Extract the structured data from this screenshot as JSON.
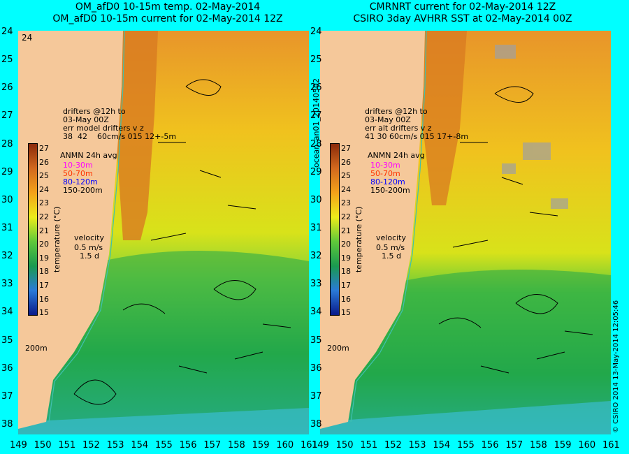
{
  "left_panel": {
    "title_line1": "OM_afD0 10-15m temp. 02-May-2014",
    "title_line2": "OM_afD0 10-15m current for 02-May-2014 12Z",
    "drifters_text": "drifters @12h to\n03-May 00Z\nerr model drifters v z\n38  42    60cm/s 015 12+-5m",
    "legend_title": "ANMN 24h avg",
    "legend_items": [
      "10-30m",
      "50-70m",
      "80-120m",
      "150-200m"
    ],
    "velocity_label": "velocity",
    "velocity_scale": "0.5 m/s",
    "velocity_time": "1.5 d",
    "colorbar_title": "temperature (°C)",
    "depth_label": "200m"
  },
  "right_panel": {
    "title_line1": "CMRNRT current for 02-May-2014 12Z",
    "title_line2": "CSIRO 3day AVHRR SST at 02-May-2014 00Z",
    "drifters_text": "drifters @12h to\n03-May 00Z\nerr alt drifters v z\n41 30 60cm/s 015 17+-8m",
    "legend_title": "ANMN 24h avg",
    "legend_items": [
      "10-30m",
      "50-70m",
      "80-120m",
      "150-200m"
    ],
    "velocity_label": "velocity",
    "velocity_scale": "0.5 m/s",
    "velocity_time": "1.5 d",
    "colorbar_title": "temperature (°C)",
    "depth_label": "200m"
  },
  "colorbar_ticks": [
    "27",
    "26",
    "25",
    "24",
    "23",
    "22",
    "21",
    "20",
    "19",
    "18",
    "17",
    "16",
    "15"
  ],
  "lat_ticks": [
    "24",
    "25",
    "26",
    "27",
    "28",
    "29",
    "30",
    "31",
    "32",
    "33",
    "34",
    "35",
    "36",
    "37",
    "38"
  ],
  "lon_ticks": [
    "149",
    "150",
    "151",
    "152",
    "153",
    "154",
    "155",
    "156",
    "157",
    "158",
    "159",
    "160",
    "161"
  ],
  "side_label": "ocean_an01_20140502",
  "credit": "© CSIRO 2014   13-May-2014 12:05:46",
  "legend_colors": [
    "#ff00ff",
    "#ff3300",
    "#0000ff",
    "#000000"
  ],
  "colors": {
    "background": "#00ffff",
    "land": "#f5c89a",
    "warm": "#d2691e",
    "cool": "#22a84a"
  }
}
